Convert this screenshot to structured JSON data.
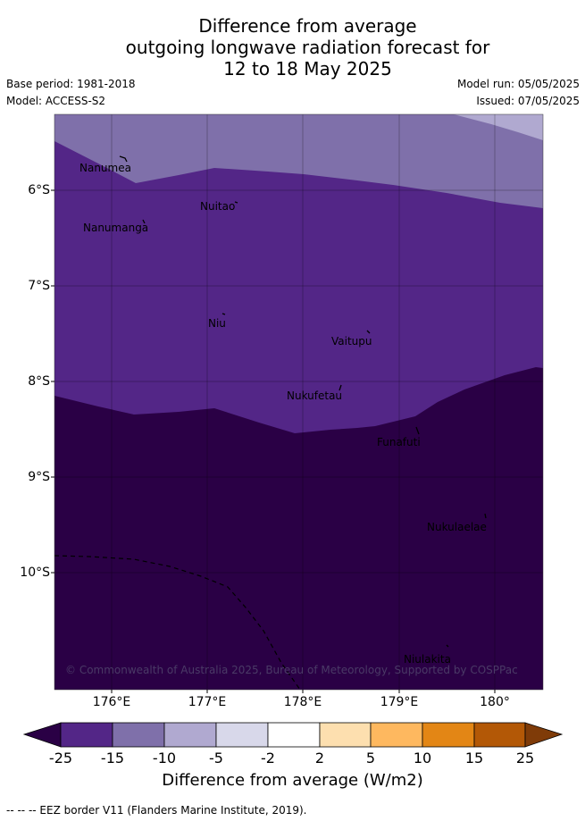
{
  "title_lines": [
    "Difference from average",
    "outgoing longwave radiation forecast for",
    "12 to 18 May 2025"
  ],
  "base_period": "Base period: 1981-2018",
  "model": "Model: ACCESS-S2",
  "model_run": "Model run: 05/05/2025",
  "issued": "Issued: 07/05/2025",
  "lat_labels": [
    "6°S",
    "7°S",
    "8°S",
    "9°S",
    "10°S"
  ],
  "lon_labels": [
    "176°E",
    "177°E",
    "178°E",
    "179°E",
    "180°"
  ],
  "islands": [
    "Nanumea",
    "Nuitao",
    "Nanumanga",
    "Niu",
    "Vaitupu",
    "Nukufetau",
    "Funafuti",
    "Nukulaelae",
    "Niulakita"
  ],
  "copyright": "© Commonwealth of Australia 2025, Bureau of Meteorology, Supported by COSPPac",
  "colorbar": {
    "ticks": [
      "-25",
      "-15",
      "-10",
      "-5",
      "-2",
      "2",
      "5",
      "10",
      "15",
      "25"
    ],
    "colors": [
      "#2a0045",
      "#532687",
      "#7f70aa",
      "#b0a9d0",
      "#d8d8ea",
      "#ffffff",
      "#fddfaf",
      "#feb85f",
      "#e38615",
      "#b35806",
      "#7f3b08"
    ],
    "label": "Difference from average (W/m2)"
  },
  "footnote": "-- -- -- EEZ border V11 (Flanders Marine Institute, 2019)."
}
